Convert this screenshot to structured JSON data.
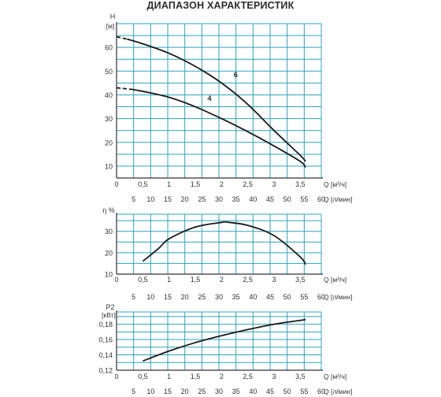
{
  "title": "ДИАПАЗОН ХАРАКТЕРИСТИК",
  "colors": {
    "grid": "#2fa3b8",
    "axis": "#333333",
    "curve": "#1a1a1a"
  },
  "chart_data": [
    {
      "type": "line",
      "ylabel": "H",
      "yunit": "[м]",
      "xlabel": "Q [м³/ч]",
      "x2label": "Q [л/мин]",
      "xlim": [
        0,
        3.9
      ],
      "ylim": [
        5,
        70
      ],
      "yticks": [
        10,
        20,
        30,
        40,
        50,
        60
      ],
      "xticks": [
        "0",
        "0,5",
        "1",
        "1,5",
        "2",
        "2,5",
        "3",
        "3,5"
      ],
      "x2ticks": [
        "5",
        "10",
        "15",
        "20",
        "25",
        "30",
        "35",
        "40",
        "45",
        "50",
        "55",
        "60"
      ],
      "grid": true,
      "series": [
        {
          "name": "6",
          "dashed_until": 0.2,
          "x": [
            0,
            0.2,
            0.5,
            1.0,
            1.5,
            2.0,
            2.5,
            3.0,
            3.5,
            3.6
          ],
          "y": [
            64.5,
            63.5,
            61.5,
            57.5,
            52,
            45,
            36,
            25,
            14.5,
            12
          ]
        },
        {
          "name": "4",
          "dashed_until": 0.3,
          "x": [
            0,
            0.3,
            0.5,
            1.0,
            1.5,
            2.0,
            2.5,
            3.0,
            3.5,
            3.6
          ],
          "y": [
            43,
            42.3,
            41.5,
            39,
            35,
            30,
            24.5,
            18.5,
            12,
            9.5
          ]
        }
      ]
    },
    {
      "type": "line",
      "ylabel": "η %",
      "xlabel": "Q [м³/ч]",
      "x2label": "Q [л/мин]",
      "xlim": [
        0,
        3.9
      ],
      "ylim": [
        10,
        38
      ],
      "yticks": [
        10,
        20,
        30
      ],
      "xticks": [
        "0",
        "0,5",
        "1",
        "1,5",
        "2",
        "2,5",
        "3",
        "3,5"
      ],
      "x2ticks": [
        "5",
        "10",
        "15",
        "20",
        "25",
        "30",
        "35",
        "40",
        "45",
        "50",
        "55",
        "60"
      ],
      "grid": true,
      "series": [
        {
          "x": [
            0.5,
            0.8,
            1.0,
            1.5,
            2.0,
            2.1,
            2.5,
            3.0,
            3.5,
            3.6
          ],
          "y": [
            16,
            22,
            26.5,
            32,
            34.2,
            34.3,
            32.8,
            28,
            18,
            14.5
          ]
        }
      ]
    },
    {
      "type": "line",
      "ylabel": "P2",
      "yunit": "[кВт]",
      "xlabel": "Q [м³/ч]",
      "x2label": "Q [л/мин]",
      "xlim": [
        0,
        3.9
      ],
      "ylim": [
        0.12,
        0.196
      ],
      "yticks": [
        "0,12",
        "0,14",
        "0,16",
        "0,18"
      ],
      "yticks_values": [
        0.12,
        0.14,
        0.16,
        0.18
      ],
      "xticks": [
        "0",
        "0,5",
        "1",
        "1,5",
        "2",
        "2,5",
        "3",
        "3,5"
      ],
      "x2ticks": [
        "5",
        "10",
        "15",
        "20",
        "25",
        "30",
        "35",
        "40",
        "45",
        "50",
        "55",
        "60"
      ],
      "grid": true,
      "series": [
        {
          "x": [
            0.5,
            1.0,
            1.5,
            2.0,
            2.5,
            3.0,
            3.5,
            3.6
          ],
          "y": [
            0.132,
            0.145,
            0.156,
            0.165,
            0.173,
            0.18,
            0.185,
            0.186
          ]
        }
      ]
    }
  ]
}
